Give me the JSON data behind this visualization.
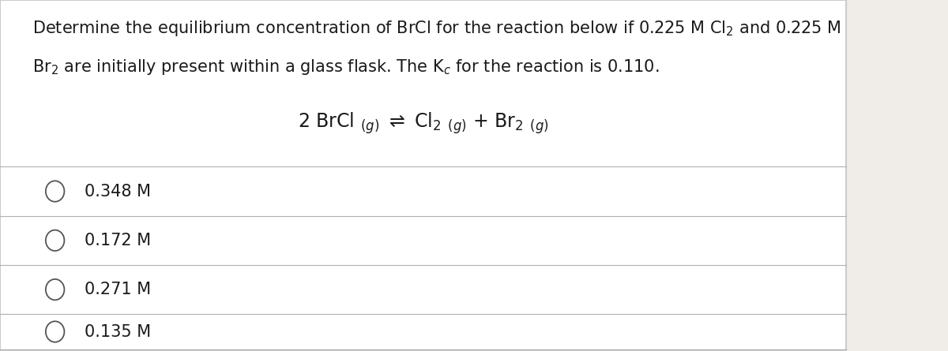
{
  "background_color": "#f0ede8",
  "panel_color": "#ffffff",
  "border_color": "#cccccc",
  "options": [
    "0.348 M",
    "0.172 M",
    "0.271 M",
    "0.135 M"
  ],
  "text_color": "#1a1a1a",
  "option_fontsize": 15,
  "question_fontsize": 15,
  "equation_fontsize": 17,
  "divider_color": "#b0b0b0",
  "circle_color": "#555555"
}
